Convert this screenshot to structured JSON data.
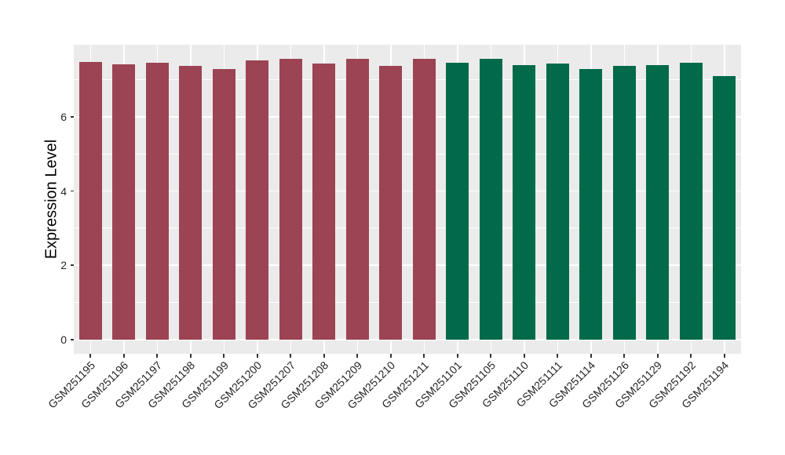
{
  "chart_data": {
    "type": "bar",
    "title": "",
    "ylabel": "Expression Level",
    "xlabel": "",
    "categories": [
      "GSM251195",
      "GSM251196",
      "GSM251197",
      "GSM251198",
      "GSM251199",
      "GSM251200",
      "GSM251207",
      "GSM251208",
      "GSM251209",
      "GSM251210",
      "GSM251211",
      "GSM251101",
      "GSM251105",
      "GSM251110",
      "GSM251111",
      "GSM251114",
      "GSM251126",
      "GSM251129",
      "GSM251192",
      "GSM251194"
    ],
    "values": [
      7.48,
      7.41,
      7.45,
      7.38,
      7.28,
      7.52,
      7.56,
      7.44,
      7.55,
      7.37,
      7.56,
      7.45,
      7.57,
      7.39,
      7.43,
      7.28,
      7.37,
      7.39,
      7.46,
      7.09
    ],
    "bar_colors": [
      "#9C4454",
      "#9C4454",
      "#9C4454",
      "#9C4454",
      "#9C4454",
      "#9C4454",
      "#9C4454",
      "#9C4454",
      "#9C4454",
      "#9C4454",
      "#9C4454",
      "#016A4A",
      "#016A4A",
      "#016A4A",
      "#016A4A",
      "#016A4A",
      "#016A4A",
      "#016A4A",
      "#016A4A",
      "#016A4A"
    ],
    "yticks": [
      0,
      2,
      4,
      6
    ],
    "minor_gridlines": [
      1,
      3,
      5,
      7
    ],
    "ylim": [
      -0.38,
      7.94
    ],
    "grid": "on",
    "legend_position": "none",
    "panel_background": "#EBEBEB",
    "gridline_color": "#FFFFFF",
    "tick_color": "#333333",
    "axis_text_color": "#262626"
  }
}
